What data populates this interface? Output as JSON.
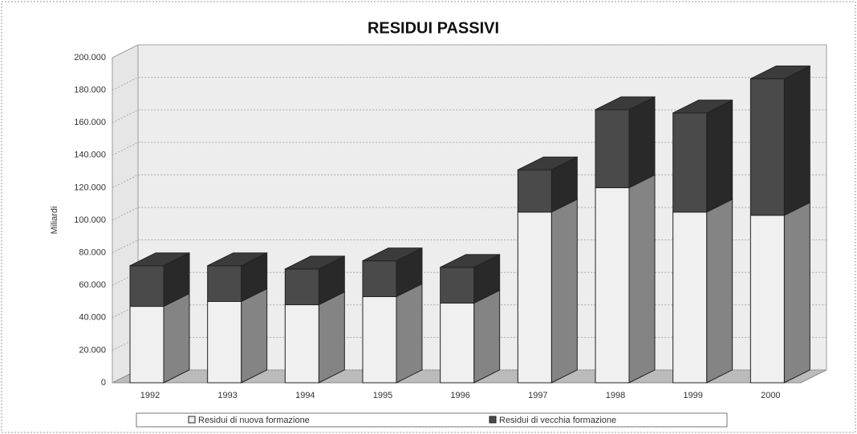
{
  "chart_data": {
    "type": "bar3d_stacked",
    "title": "RESIDUI PASSIVI",
    "y_label": "Miliardi",
    "categories": [
      "1992",
      "1993",
      "1994",
      "1995",
      "1996",
      "1997",
      "1998",
      "1999",
      "2000"
    ],
    "series": [
      {
        "name": "Residui di nuova formazione",
        "color": "#f0f0f0",
        "values": [
          47000,
          50000,
          48000,
          53000,
          49000,
          105000,
          120000,
          105000,
          103000
        ]
      },
      {
        "name": "Residui di vecchia formazione",
        "color": "#4a4a4a",
        "values": [
          25000,
          22000,
          22000,
          22000,
          22000,
          26000,
          48000,
          61000,
          84000
        ]
      }
    ],
    "ylim": [
      0,
      200000
    ],
    "yticks": [
      0,
      {
        "value": 20000,
        "label": "20.000"
      },
      {
        "value": 40000,
        "label": "40.000"
      },
      {
        "value": 60000,
        "label": "60.000"
      },
      {
        "value": 80000,
        "label": "80.000"
      },
      {
        "value": 100000,
        "label": "100.000"
      },
      {
        "value": 120000,
        "label": "120.000"
      },
      {
        "value": 140000,
        "label": "140.000"
      },
      {
        "value": 160000,
        "label": "160.000"
      },
      {
        "value": 180000,
        "label": "180.000"
      },
      {
        "value": 200000,
        "label": "200.000"
      }
    ],
    "grid": true
  }
}
